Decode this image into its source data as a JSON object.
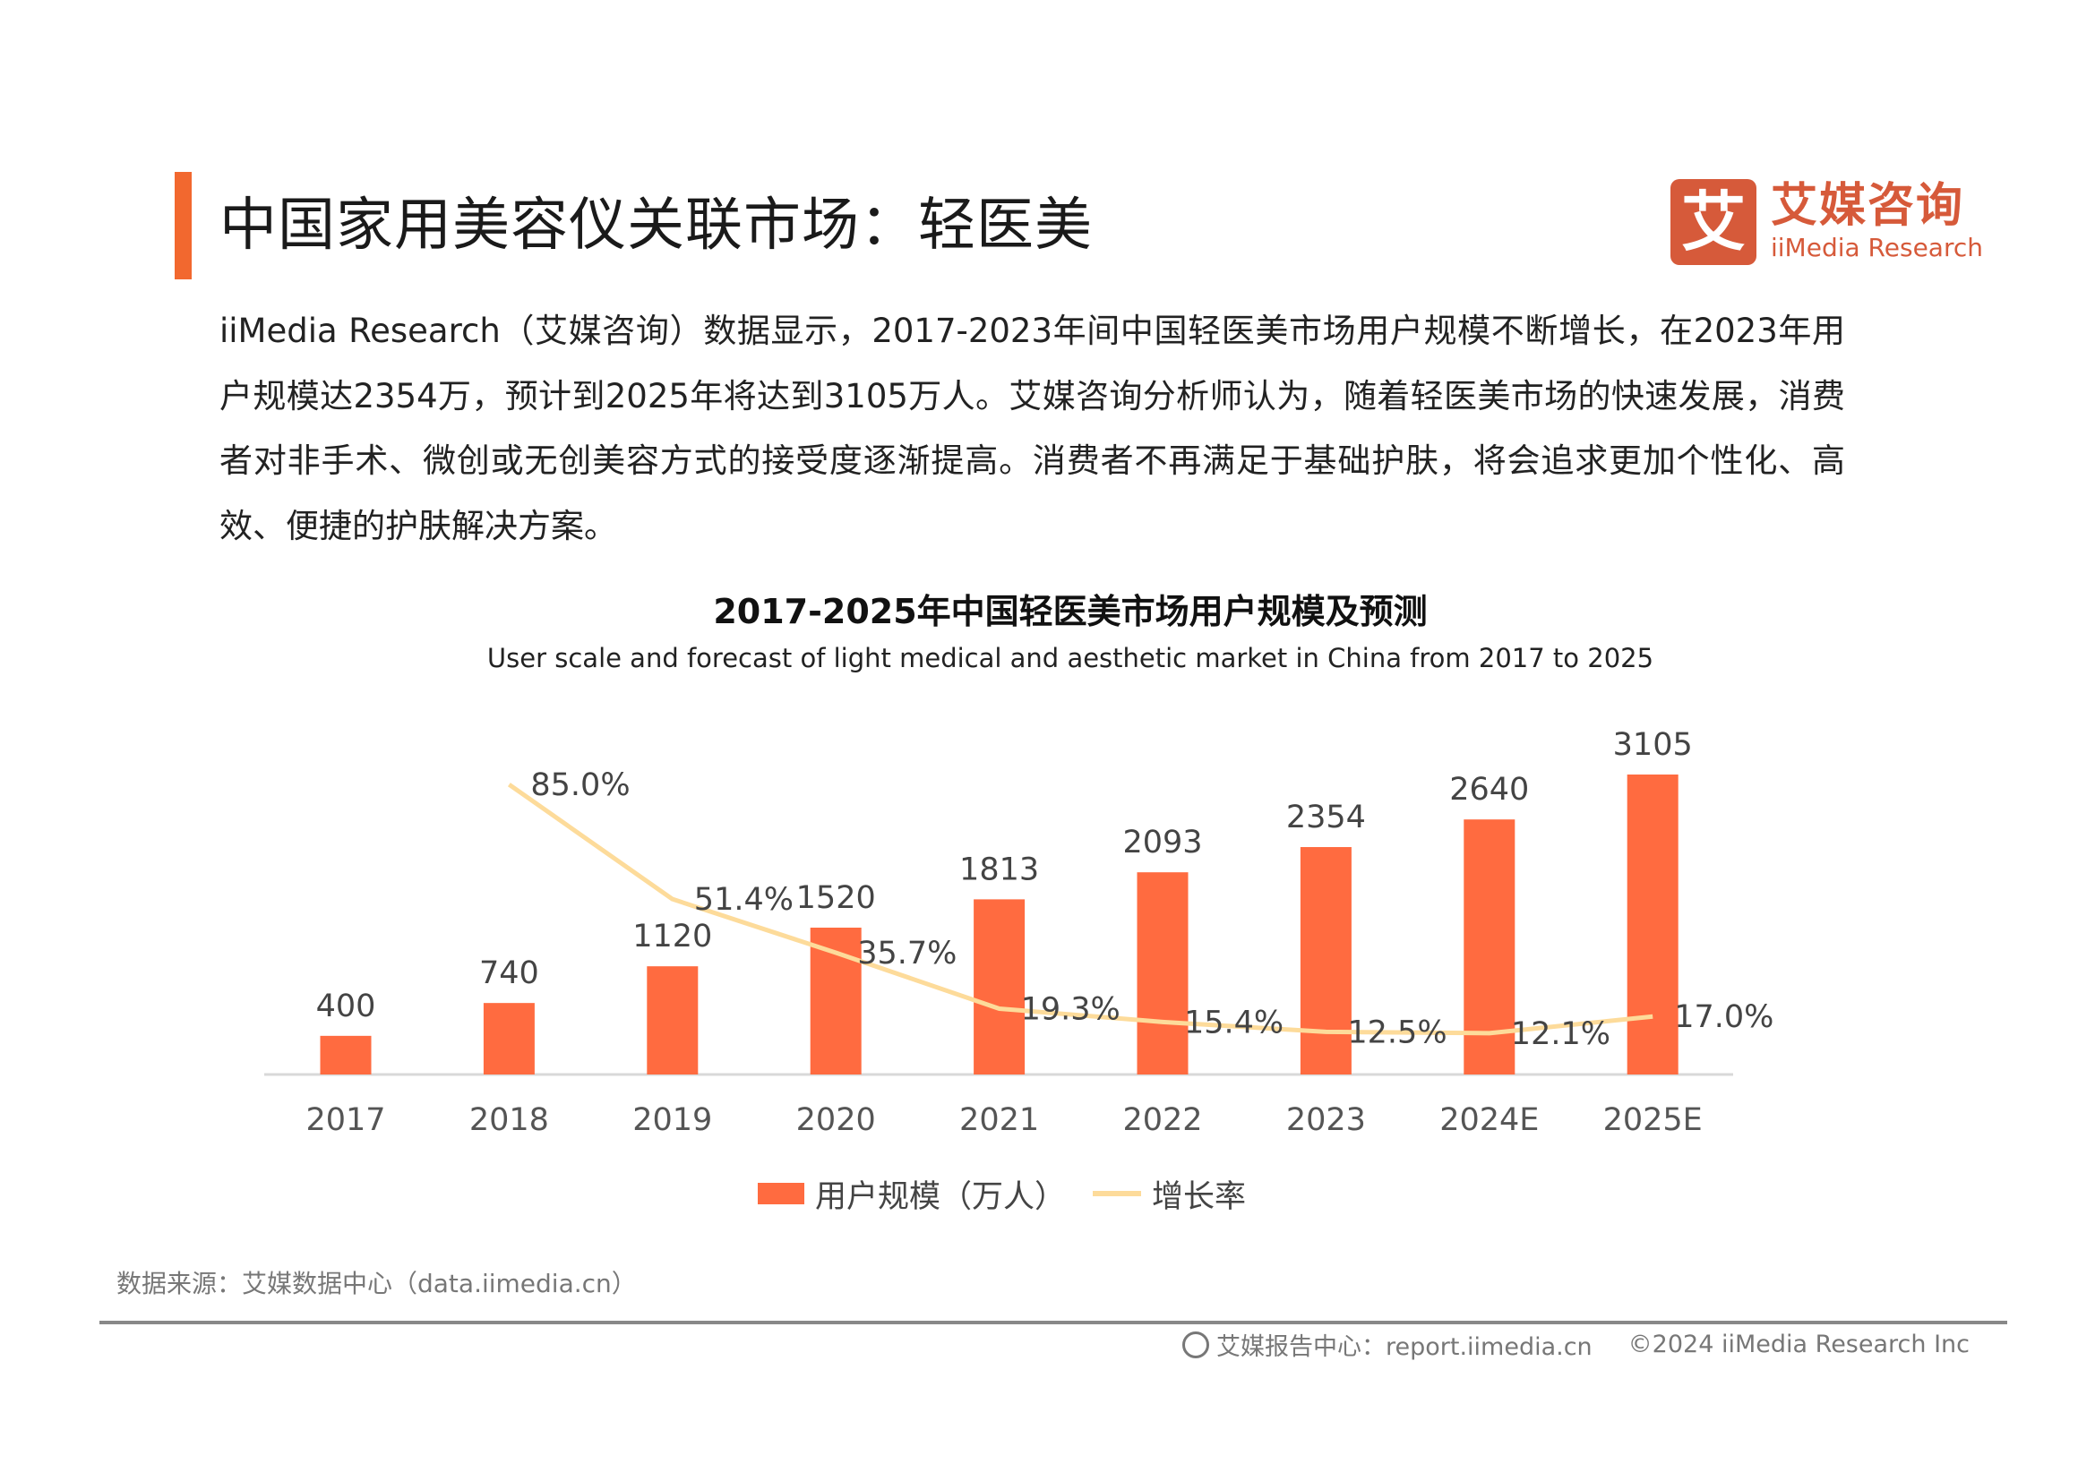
{
  "header": {
    "title": "中国家用美容仪关联市场：轻医美",
    "logo_cn": "艾媒咨询",
    "logo_en": "iiMedia Research",
    "logo_mark": "艾"
  },
  "paragraph": "iiMedia Research（艾媒咨询）数据显示，2017-2023年间中国轻医美市场用户规模不断增长，在2023年用户规模达2354万，预计到2025年将达到3105万人。艾媒咨询分析师认为，随着轻医美市场的快速发展，消费者对非手术、微创或无创美容方式的接受度逐渐提高。消费者不再满足于基础护肤，将会追求更加个性化、高效、便捷的护肤解决方案。",
  "chart_data": {
    "type": "bar+line",
    "title": "2017-2025年中国轻医美市场用户规模及预测",
    "subtitle": "User scale and forecast of light medical and aesthetic market in China from 2017 to 2025",
    "categories": [
      "2017",
      "2018",
      "2019",
      "2020",
      "2021",
      "2022",
      "2023",
      "2024E",
      "2025E"
    ],
    "series": [
      {
        "name": "用户规模（万人）",
        "type": "bar",
        "color": "#FF6B40",
        "values": [
          400,
          740,
          1120,
          1520,
          1813,
          2093,
          2354,
          2640,
          3105
        ],
        "labels": [
          "400",
          "740",
          "1120",
          "1520",
          "1813",
          "2093",
          "2354",
          "2640",
          "3105"
        ]
      },
      {
        "name": "增长率",
        "type": "line",
        "color": "#FDDB9A",
        "values": [
          null,
          85.0,
          51.4,
          35.7,
          19.3,
          15.4,
          12.5,
          12.1,
          17.0
        ],
        "labels": [
          "",
          "85.0%",
          "51.4%",
          "35.7%",
          "19.3%",
          "15.4%",
          "12.5%",
          "12.1%",
          "17.0%"
        ]
      }
    ],
    "grid": false,
    "legend": "bottom"
  },
  "source": "数据来源：艾媒数据中心（data.iimedia.cn）",
  "footer": {
    "report_center": "艾媒报告中心：report.iimedia.cn",
    "copyright": "©2024  iiMedia Research  Inc"
  }
}
